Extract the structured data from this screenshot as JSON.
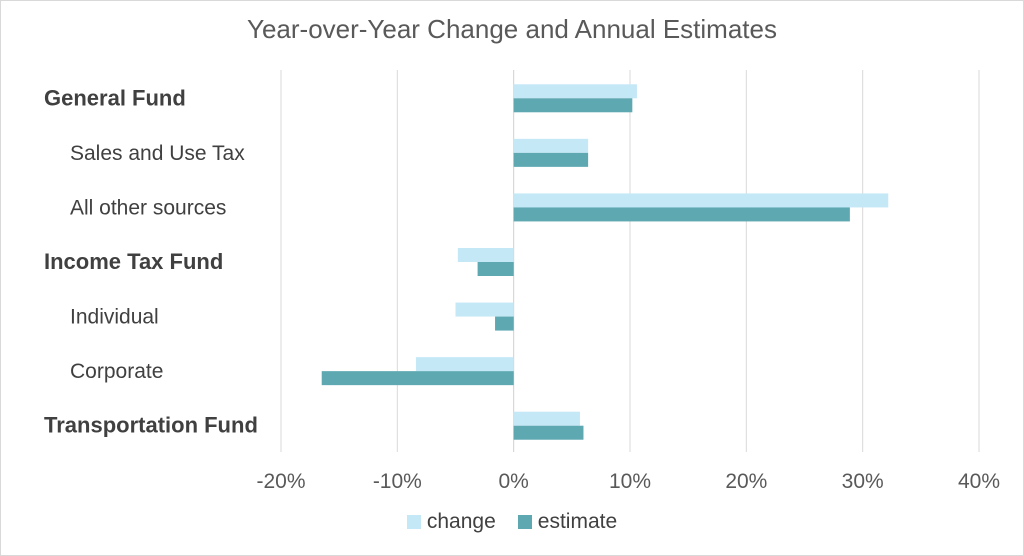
{
  "chart_data": {
    "type": "bar",
    "orientation": "horizontal",
    "title": "Year-over-Year Change and Annual Estimates",
    "categories": [
      {
        "label": "General Fund",
        "bold": true
      },
      {
        "label": "Sales and Use Tax",
        "bold": false
      },
      {
        "label": "All other sources",
        "bold": false
      },
      {
        "label": "Income Tax Fund",
        "bold": true
      },
      {
        "label": "Individual",
        "bold": false
      },
      {
        "label": "Corporate",
        "bold": false
      },
      {
        "label": "Transportation Fund",
        "bold": true
      }
    ],
    "series": [
      {
        "name": "change",
        "color": "#c5e8f7",
        "values": [
          10.6,
          6.4,
          32.2,
          -4.8,
          -5.0,
          -8.4,
          5.7
        ]
      },
      {
        "name": "estimate",
        "color": "#5ea8b2",
        "values": [
          10.2,
          6.4,
          28.9,
          -3.1,
          -1.6,
          -16.5,
          6.0
        ]
      }
    ],
    "xlim": [
      -20,
      40
    ],
    "xticks": [
      -20,
      -10,
      0,
      10,
      20,
      30,
      40
    ],
    "xtick_labels": [
      "-20%",
      "-10%",
      "0%",
      "10%",
      "20%",
      "30%",
      "40%"
    ],
    "grid": true,
    "legend_position": "bottom"
  }
}
